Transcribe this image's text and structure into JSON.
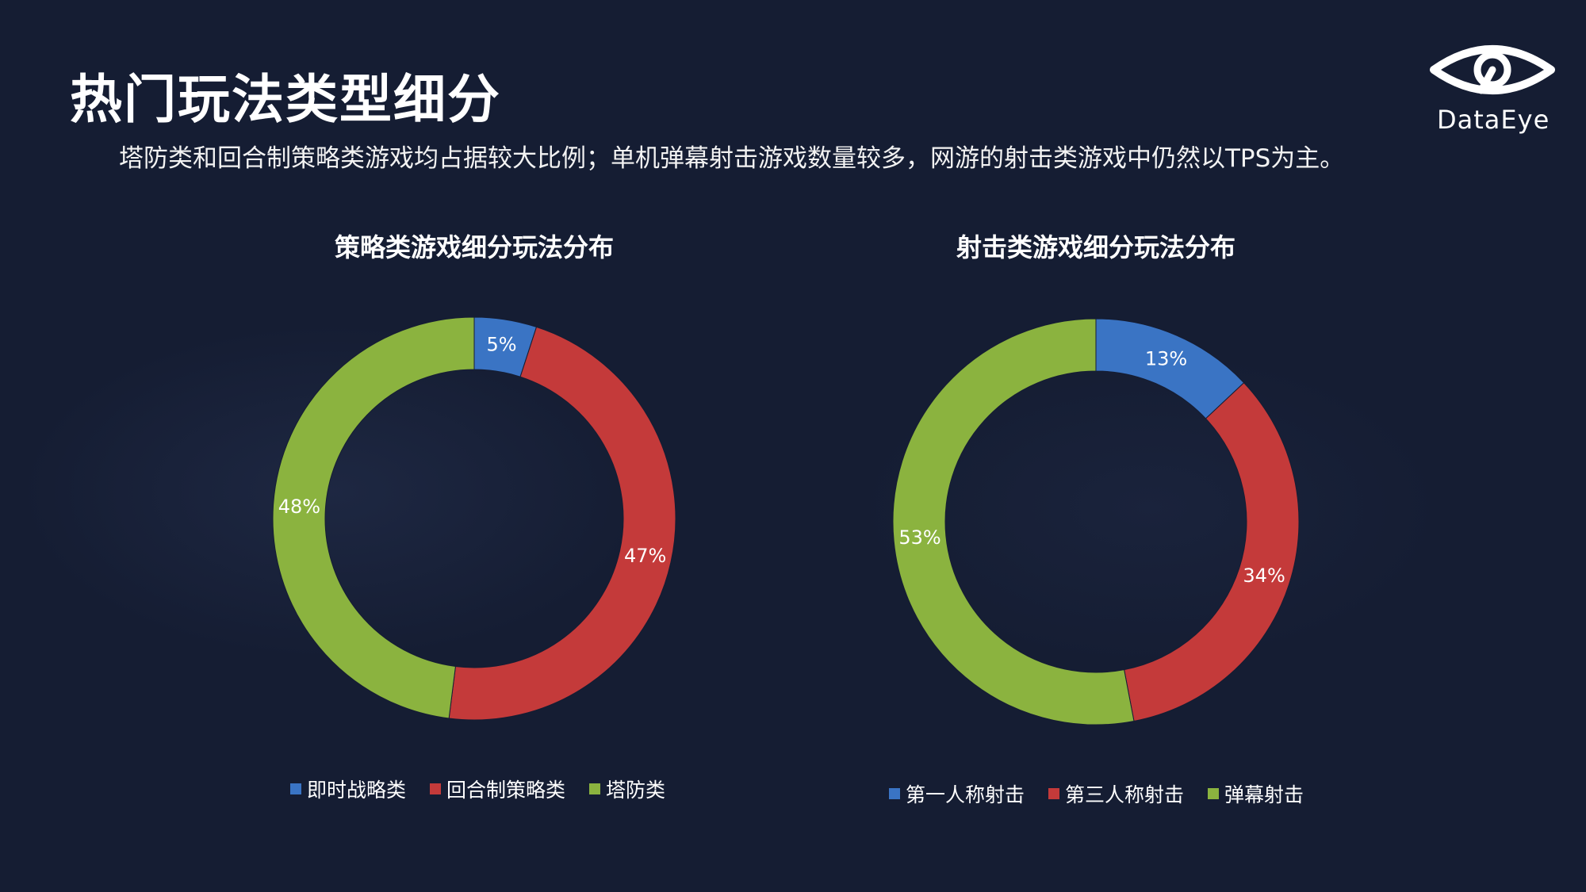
{
  "page": {
    "title": "热门玩法类型细分",
    "subtitle": "塔防类和回合制策略类游戏均占据较大比例；单机弹幕射击游戏数量较多，网游的射击类游戏中仍然以TPS为主。",
    "logo_text": "DataEye",
    "background_color": "#151d33"
  },
  "chart_data": [
    {
      "type": "donut",
      "title": "策略类游戏细分玩法分布",
      "categories": [
        "即时战略类",
        "回合制策略类",
        "塔防类"
      ],
      "values": [
        5,
        47,
        48
      ],
      "labels": [
        "5%",
        "47%",
        "48%"
      ],
      "colors": [
        "#3a74c4",
        "#c43a3a",
        "#8bb33f"
      ],
      "legend_position": "bottom"
    },
    {
      "type": "donut",
      "title": "射击类游戏细分玩法分布",
      "categories": [
        "第一人称射击",
        "第三人称射击",
        "弹幕射击"
      ],
      "values": [
        13,
        34,
        53
      ],
      "labels": [
        "13%",
        "34%",
        "53%"
      ],
      "colors": [
        "#3a74c4",
        "#c43a3a",
        "#8bb33f"
      ],
      "legend_position": "bottom"
    }
  ]
}
